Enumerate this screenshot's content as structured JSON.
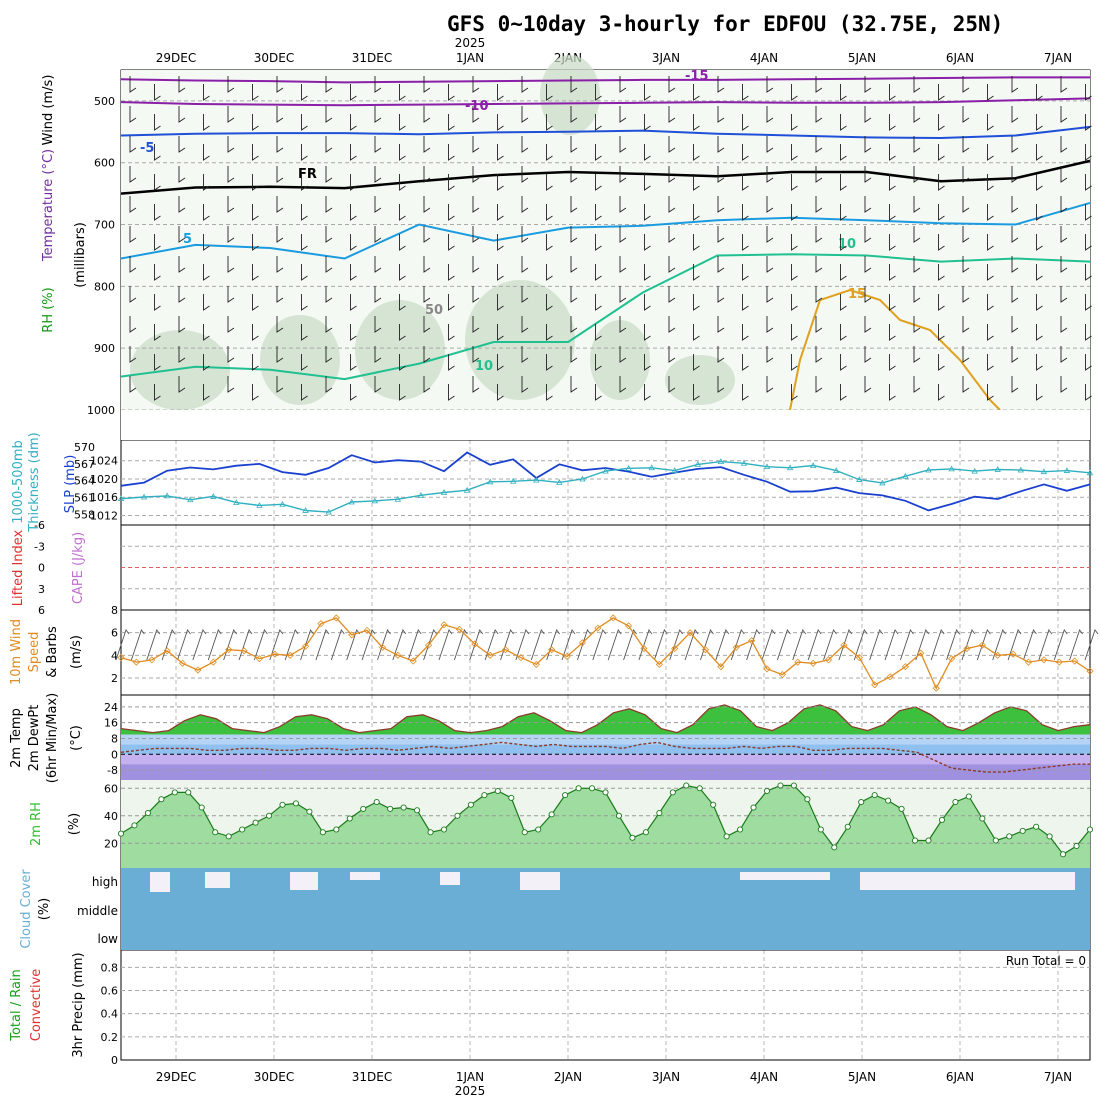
{
  "title": "GFS 0~10day 3-hourly for EDFOU (32.75E, 25N)",
  "year_label": "2025",
  "dates": [
    "29DEC",
    "30DEC",
    "31DEC",
    "1JAN",
    "2JAN",
    "3JAN",
    "4JAN",
    "5JAN",
    "6JAN",
    "7JAN"
  ],
  "colors": {
    "temp_minus15": "#8a1fa8",
    "temp_minus10": "#8a1fa8",
    "temp_minus5": "#2050d8",
    "temp_5": "#1a9be0",
    "temp_10": "#20c090",
    "temp_15": "#e0a020",
    "slp": "#1a40d0",
    "thickness": "#30b0c0",
    "wind10m": "#e08c20",
    "rh2m": "#30c030",
    "cloud": "#6aaed6",
    "lifted_index": "#e03030",
    "cape": "#c070d0"
  },
  "chart_data": [
    {
      "type": "heatmap",
      "panel": "upper-air",
      "ylabel": "(millibars)",
      "side_labels": [
        "RH (%)",
        "Temperature (°C)",
        "Wind (m/s)"
      ],
      "yticks": [
        500,
        600,
        700,
        800,
        900,
        1000
      ],
      "ylim": [
        1000,
        450
      ],
      "contour_labels": [
        "-15",
        "-10",
        "-5",
        "FR",
        "5",
        "10",
        "15",
        "10",
        "50"
      ],
      "temperature_contours": [
        {
          "name": "-15",
          "values": [
            465,
            467,
            468,
            470,
            469,
            468,
            467,
            466,
            466,
            465,
            464,
            463,
            462,
            462
          ]
        },
        {
          "name": "-10",
          "values": [
            502,
            505,
            506,
            507,
            506,
            505,
            504,
            503,
            502,
            503,
            503,
            502,
            499,
            496
          ]
        },
        {
          "name": "-5",
          "values": [
            556,
            553,
            552,
            552,
            554,
            551,
            550,
            548,
            553,
            556,
            559,
            560,
            556,
            542
          ]
        },
        {
          "name": "FR",
          "values": [
            650,
            640,
            639,
            641,
            630,
            620,
            615,
            618,
            622,
            615,
            615,
            630,
            625,
            597
          ]
        },
        {
          "name": "5",
          "values": [
            755,
            733,
            738,
            755,
            700,
            726,
            705,
            702,
            693,
            689,
            693,
            698,
            700,
            665
          ]
        },
        {
          "name": "10",
          "values": [
            946,
            930,
            935,
            950,
            925,
            890,
            890,
            810,
            750,
            748,
            750,
            760,
            755,
            760
          ]
        }
      ]
    },
    {
      "type": "line",
      "panel": "pressure-thickness",
      "ylabels": [
        "1000-500mb",
        "Thickness (dm)",
        "SLP (mb)"
      ],
      "y_thickness_ticks": [
        558,
        561,
        564,
        567,
        570
      ],
      "y_slp_ticks": [
        1012,
        1016,
        1020,
        1024
      ],
      "series": [
        {
          "name": "SLP (mb)",
          "values": [
            1018.5,
            1019.2,
            1021.8,
            1022.5,
            1022.1,
            1022.9,
            1023.3,
            1021.5,
            1020.9,
            1022.4,
            1025.2,
            1023.6,
            1024.1,
            1023.8,
            1021.7,
            1025.8,
            1023.1,
            1024.3,
            1020.2,
            1023.2,
            1021.9,
            1022.4,
            1021.6,
            1020.5,
            1021.4,
            1022.2,
            1022.6,
            1020.9,
            1019.4,
            1017.2,
            1017.3,
            1018.1,
            1016.9,
            1016.4,
            1015.2,
            1013.1,
            1014.5,
            1016.1,
            1015.6,
            1017.3,
            1018.8,
            1017.4,
            1018.8
          ]
        },
        {
          "name": "Thickness (dm)",
          "values": [
            560.8,
            561.1,
            561.3,
            560.6,
            561.2,
            560.1,
            559.6,
            559.8,
            558.7,
            558.4,
            560.2,
            560.4,
            560.7,
            561.4,
            561.9,
            562.3,
            563.8,
            563.9,
            564.1,
            563.7,
            564.3,
            565.7,
            566.2,
            566.3,
            565.8,
            566.9,
            567.4,
            567.1,
            566.5,
            566.3,
            566.7,
            565.8,
            564.2,
            563.6,
            564.8,
            565.9,
            566.1,
            565.7,
            566.0,
            565.9,
            565.6,
            565.8,
            565.4
          ]
        }
      ]
    },
    {
      "type": "line",
      "panel": "stability",
      "ylabels": [
        "Lifted Index",
        "CAPE (J/kg)"
      ],
      "yticks_left": [
        6,
        3,
        0,
        -3,
        -6
      ],
      "yticks_right": [],
      "series": [
        {
          "name": "Lifted Index",
          "values": []
        },
        {
          "name": "CAPE (J/kg)",
          "values": []
        }
      ]
    },
    {
      "type": "line",
      "panel": "10m-wind",
      "ylabels": [
        "10m Wind",
        "Speed",
        "& Barbs",
        "(m/s)"
      ],
      "yticks": [
        2,
        4,
        6,
        8
      ],
      "ylim": [
        0.5,
        8
      ],
      "series": [
        {
          "name": "10m Wind Speed",
          "values": [
            3.8,
            3.4,
            3.6,
            4.4,
            3.3,
            2.7,
            3.4,
            4.5,
            4.4,
            3.7,
            4.1,
            4.0,
            4.8,
            6.8,
            7.3,
            5.8,
            6.2,
            4.7,
            4.0,
            3.5,
            4.9,
            6.7,
            6.3,
            5.0,
            4.0,
            4.5,
            3.8,
            3.2,
            4.5,
            3.9,
            5.1,
            6.4,
            7.3,
            6.6,
            4.6,
            3.2,
            4.6,
            6.0,
            4.5,
            3.0,
            4.7,
            5.3,
            2.8,
            2.3,
            3.4,
            3.3,
            3.6,
            4.9,
            3.8,
            1.4,
            2.1,
            3.0,
            4.2,
            1.1,
            3.7,
            4.6,
            4.9,
            4.0,
            4.1,
            3.4,
            3.6,
            3.4,
            3.5,
            2.6
          ]
        }
      ]
    },
    {
      "type": "area",
      "panel": "2m-temperature",
      "ylabels": [
        "2m Temp",
        "2m DewPt",
        "(6hr Min/Max)",
        "(°C)"
      ],
      "yticks": [
        24,
        16,
        8,
        0,
        -8
      ],
      "ylim": [
        -13,
        30
      ],
      "series": [
        {
          "name": "2m Temp",
          "values": [
            13,
            12,
            11,
            12,
            17,
            20,
            18,
            13,
            12,
            11,
            14,
            19,
            20,
            18,
            13,
            11,
            12,
            13,
            19,
            20,
            17,
            12,
            11,
            12,
            14,
            19,
            21,
            17,
            12,
            11,
            15,
            21,
            23,
            20,
            13,
            11,
            15,
            23,
            25,
            22,
            14,
            12,
            16,
            23,
            25,
            22,
            14,
            12,
            15,
            22,
            24,
            20,
            14,
            12,
            16,
            21,
            24,
            22,
            15,
            12,
            14,
            15
          ]
        },
        {
          "name": "2m DewPt",
          "values": [
            1,
            2,
            3,
            3,
            3,
            2,
            2,
            3,
            3,
            2,
            2,
            3,
            3,
            2,
            3,
            3,
            2,
            3,
            4,
            3,
            4,
            5,
            6,
            5,
            4,
            5,
            4,
            4,
            4,
            3,
            5,
            6,
            4,
            3,
            3,
            3,
            4,
            3,
            4,
            4,
            2,
            2,
            3,
            3,
            3,
            2,
            1,
            -3,
            -7,
            -8,
            -9,
            -9,
            -8,
            -7,
            -6,
            -5,
            -5
          ]
        }
      ]
    },
    {
      "type": "area",
      "panel": "2m-rh",
      "ylabels": [
        "2m RH",
        "(%)"
      ],
      "yticks": [
        20,
        40,
        60
      ],
      "ylim": [
        2,
        66
      ],
      "series": [
        {
          "name": "2m RH",
          "values": [
            27,
            33,
            42,
            52,
            57,
            57,
            46,
            28,
            25,
            30,
            35,
            40,
            48,
            49,
            43,
            28,
            30,
            38,
            45,
            50,
            45,
            46,
            44,
            28,
            30,
            40,
            48,
            55,
            58,
            53,
            28,
            30,
            41,
            55,
            60,
            60,
            57,
            40,
            24,
            28,
            42,
            57,
            62,
            60,
            48,
            25,
            30,
            46,
            58,
            62,
            62,
            52,
            30,
            17,
            32,
            50,
            55,
            51,
            45,
            22,
            22,
            37,
            50,
            54,
            38,
            22,
            25,
            29,
            32,
            25,
            12,
            18,
            30
          ]
        }
      ]
    },
    {
      "type": "bar",
      "panel": "cloud-cover",
      "ylabels": [
        "Cloud Cover",
        "(%)"
      ],
      "layer_labels": [
        "high",
        "middle",
        "low"
      ]
    },
    {
      "type": "bar",
      "panel": "precip",
      "ylabels": [
        "Total / Rain",
        "Convective",
        "3hr Precip (mm)"
      ],
      "yticks": [
        0,
        0.2,
        0.4,
        0.6,
        0.8
      ],
      "ylim": [
        0,
        0.95
      ],
      "run_total_label": "Run Total = 0",
      "series": [
        {
          "name": "3hr Precip (mm)",
          "values": []
        }
      ]
    }
  ]
}
